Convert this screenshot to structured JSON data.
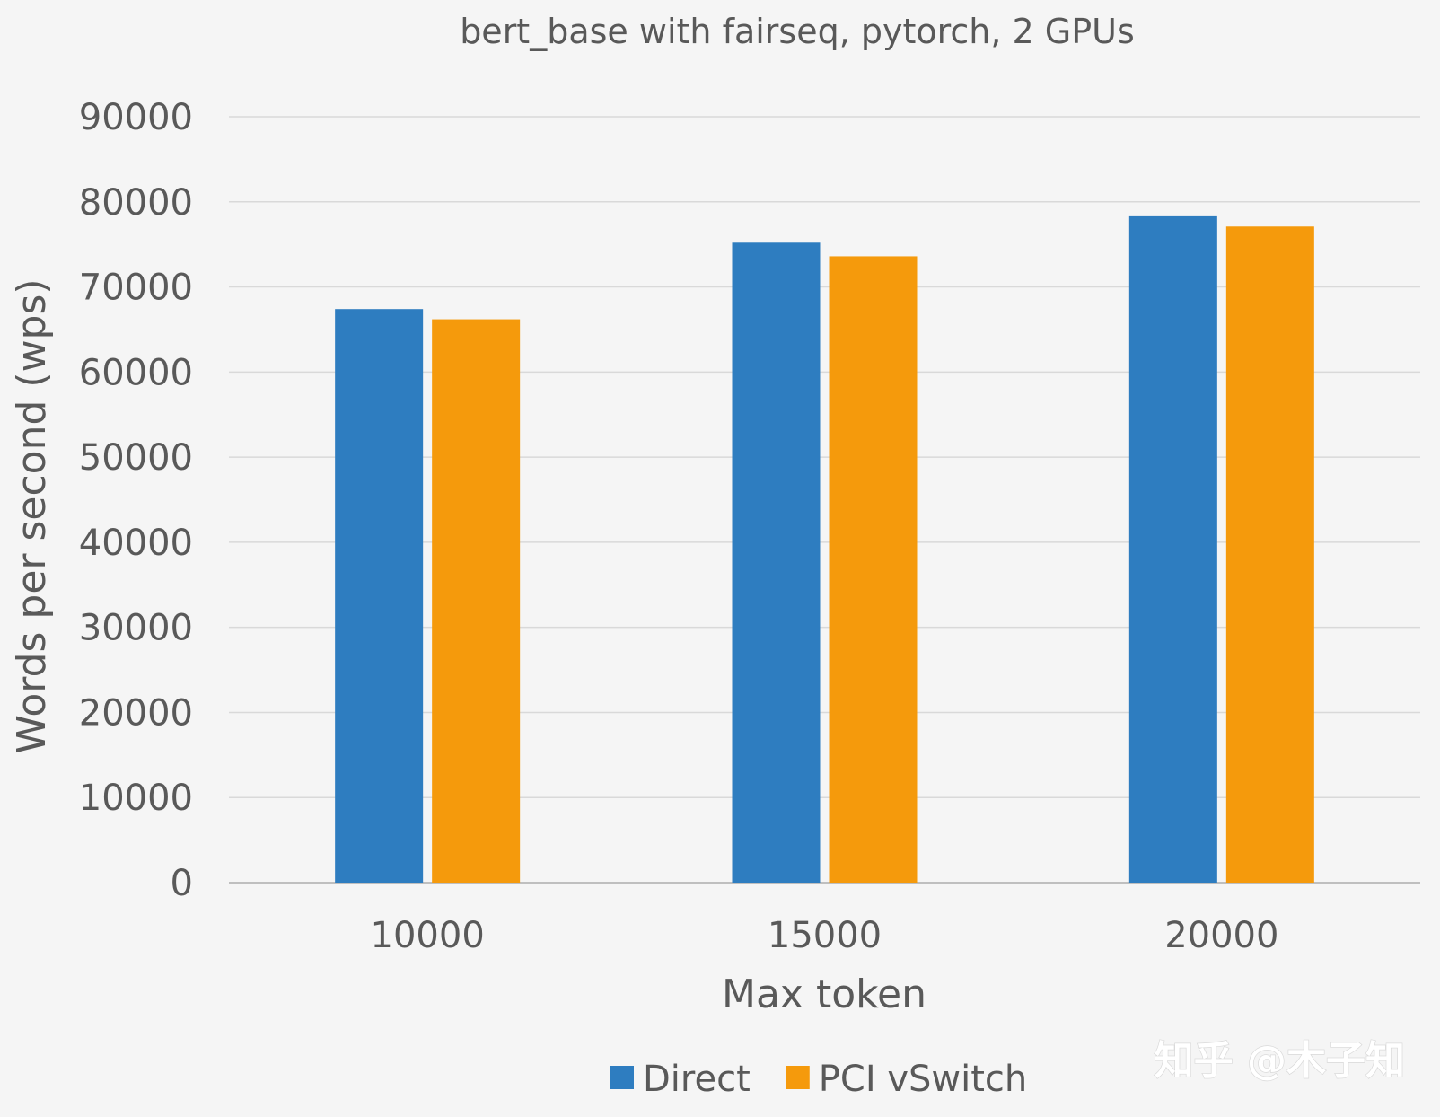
{
  "chart_data": {
    "type": "bar",
    "title": "bert_base with fairseq, pytorch, 2 GPUs",
    "xlabel": "Max token",
    "ylabel": "Words per second (wps)",
    "categories": [
      "10000",
      "15000",
      "20000"
    ],
    "series": [
      {
        "name": "Direct",
        "color": "#2e7dc0",
        "values": [
          67400,
          75200,
          78300
        ]
      },
      {
        "name": "PCI vSwitch",
        "color": "#f59a0c",
        "values": [
          66200,
          73600,
          77100
        ]
      }
    ],
    "ylim": [
      0,
      90000
    ],
    "yticks": [
      0,
      10000,
      20000,
      30000,
      40000,
      50000,
      60000,
      70000,
      80000,
      90000
    ],
    "grid": true,
    "legend_position": "bottom"
  },
  "watermark": "知乎 @木子知"
}
